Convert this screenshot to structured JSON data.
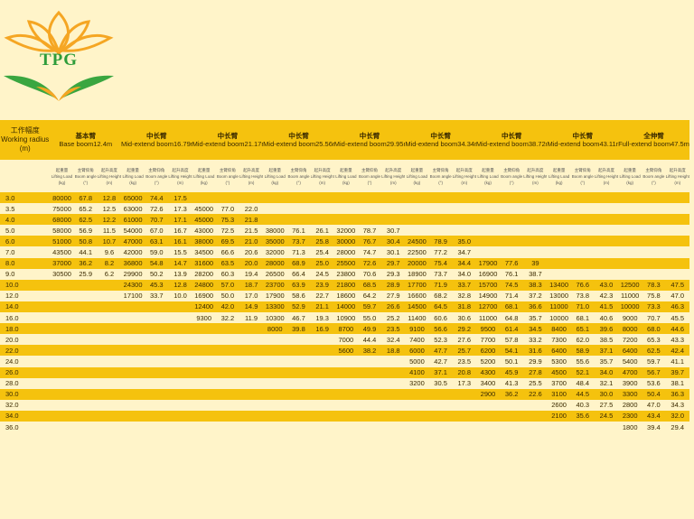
{
  "brand": {
    "text": "TPG",
    "colors": {
      "petal": "#f5a623",
      "leaf": "#3aa640",
      "text": "#2e9c3a"
    }
  },
  "colors": {
    "stripe": "#f5c20e",
    "background": "#fff4c9"
  },
  "header": {
    "working_radius": {
      "cn": "工作幅度",
      "en": "Working radius",
      "unit": "(m)"
    },
    "booms": [
      {
        "cn": "基本臂",
        "en": "Base boom",
        "len": "12.4m"
      },
      {
        "cn": "中长臂",
        "en": "Mid-extend boom",
        "len": "16.79m"
      },
      {
        "cn": "中长臂",
        "en": "Mid-extend boom",
        "len": "21.17m"
      },
      {
        "cn": "中长臂",
        "en": "Mid-extend boom",
        "len": "25.56m"
      },
      {
        "cn": "中长臂",
        "en": "Mid-extend boom",
        "len": "29.95m"
      },
      {
        "cn": "中长臂",
        "en": "Mid-extend boom",
        "len": "34.34m"
      },
      {
        "cn": "中长臂",
        "en": "Mid-extend boom",
        "len": "38.72m"
      },
      {
        "cn": "中长臂",
        "en": "Mid-extend boom",
        "len": "43.11m"
      },
      {
        "cn": "全伸臂",
        "en": "Full-extend boom",
        "len": "47.5m"
      }
    ],
    "subheads": [
      {
        "cn": "起重量",
        "en": "Lifting Load",
        "unit": "(kg)"
      },
      {
        "cn": "主臂仰角",
        "en": "Boom angle",
        "unit": "(°)"
      },
      {
        "cn": "起升高度",
        "en": "Lifting Height",
        "unit": "(m)"
      }
    ]
  },
  "rows": [
    [
      "3.0",
      "80000",
      "67.8",
      "12.8",
      "65000",
      "74.4",
      "17.5",
      "",
      "",
      "",
      "",
      "",
      "",
      "",
      "",
      "",
      "",
      "",
      "",
      "",
      "",
      "",
      "",
      "",
      "",
      "",
      "",
      ""
    ],
    [
      "3.5",
      "75000",
      "65.2",
      "12.5",
      "63000",
      "72.6",
      "17.3",
      "45000",
      "77.0",
      "22.0",
      "",
      "",
      "",
      "",
      "",
      "",
      "",
      "",
      "",
      "",
      "",
      "",
      "",
      "",
      "",
      "",
      "",
      ""
    ],
    [
      "4.0",
      "68000",
      "62.5",
      "12.2",
      "61000",
      "70.7",
      "17.1",
      "45000",
      "75.3",
      "21.8",
      "",
      "",
      "",
      "",
      "",
      "",
      "",
      "",
      "",
      "",
      "",
      "",
      "",
      "",
      "",
      "",
      "",
      ""
    ],
    [
      "5.0",
      "58000",
      "56.9",
      "11.5",
      "54000",
      "67.0",
      "16.7",
      "43000",
      "72.5",
      "21.5",
      "38000",
      "76.1",
      "26.1",
      "32000",
      "78.7",
      "30.7",
      "",
      "",
      "",
      "",
      "",
      "",
      "",
      "",
      "",
      "",
      "",
      ""
    ],
    [
      "6.0",
      "51000",
      "50.8",
      "10.7",
      "47000",
      "63.1",
      "16.1",
      "38000",
      "69.5",
      "21.0",
      "35000",
      "73.7",
      "25.8",
      "30000",
      "76.7",
      "30.4",
      "24500",
      "78.9",
      "35.0",
      "",
      "",
      "",
      "",
      "",
      "",
      "",
      "",
      ""
    ],
    [
      "7.0",
      "43500",
      "44.1",
      "9.6",
      "42000",
      "59.0",
      "15.5",
      "34500",
      "66.6",
      "20.6",
      "32000",
      "71.3",
      "25.4",
      "28000",
      "74.7",
      "30.1",
      "22500",
      "77.2",
      "34.7",
      "",
      "",
      "",
      "",
      "",
      "",
      "",
      "",
      ""
    ],
    [
      "8.0",
      "37000",
      "36.2",
      "8.2",
      "36800",
      "54.8",
      "14.7",
      "31600",
      "63.5",
      "20.0",
      "28000",
      "68.9",
      "25.0",
      "25500",
      "72.6",
      "29.7",
      "20000",
      "75.4",
      "34.4",
      "17900",
      "77.6",
      "39",
      "",
      "",
      "",
      "",
      "",
      ""
    ],
    [
      "9.0",
      "30500",
      "25.9",
      "6.2",
      "29900",
      "50.2",
      "13.9",
      "28200",
      "60.3",
      "19.4",
      "26500",
      "66.4",
      "24.5",
      "23800",
      "70.6",
      "29.3",
      "18900",
      "73.7",
      "34.0",
      "16900",
      "76.1",
      "38.7",
      "",
      "",
      "",
      "",
      "",
      ""
    ],
    [
      "10.0",
      "",
      "",
      "",
      "24300",
      "45.3",
      "12.8",
      "24800",
      "57.0",
      "18.7",
      "23700",
      "63.9",
      "23.9",
      "21800",
      "68.5",
      "28.9",
      "17700",
      "71.9",
      "33.7",
      "15700",
      "74.5",
      "38.3",
      "13400",
      "76.6",
      "43.0",
      "12500",
      "78.3",
      "47.5"
    ],
    [
      "12.0",
      "",
      "",
      "",
      "17100",
      "33.7",
      "10.0",
      "16900",
      "50.0",
      "17.0",
      "17900",
      "58.6",
      "22.7",
      "18600",
      "64.2",
      "27.9",
      "16600",
      "68.2",
      "32.8",
      "14900",
      "71.4",
      "37.2",
      "13000",
      "73.8",
      "42.3",
      "11000",
      "75.8",
      "47.0"
    ],
    [
      "14.0",
      "",
      "",
      "",
      "",
      "",
      "",
      "12400",
      "42.0",
      "14.9",
      "13300",
      "52.9",
      "21.1",
      "14000",
      "59.7",
      "26.6",
      "14500",
      "64.5",
      "31.8",
      "12700",
      "68.1",
      "36.6",
      "11000",
      "71.0",
      "41.5",
      "10000",
      "73.3",
      "46.3"
    ],
    [
      "16.0",
      "",
      "",
      "",
      "",
      "",
      "",
      "9300",
      "32.2",
      "11.9",
      "10300",
      "46.7",
      "19.3",
      "10900",
      "55.0",
      "25.2",
      "11400",
      "60.6",
      "30.6",
      "11000",
      "64.8",
      "35.7",
      "10000",
      "68.1",
      "40.6",
      "9000",
      "70.7",
      "45.5"
    ],
    [
      "18.0",
      "",
      "",
      "",
      "",
      "",
      "",
      "",
      "",
      "",
      "8000",
      "39.8",
      "16.9",
      "8700",
      "49.9",
      "23.5",
      "9100",
      "56.6",
      "29.2",
      "9500",
      "61.4",
      "34.5",
      "8400",
      "65.1",
      "39.6",
      "8000",
      "68.0",
      "44.6"
    ],
    [
      "20.0",
      "",
      "",
      "",
      "",
      "",
      "",
      "",
      "",
      "",
      "",
      "",
      "",
      "7000",
      "44.4",
      "32.4",
      "7400",
      "52.3",
      "27.6",
      "7700",
      "57.8",
      "33.2",
      "7300",
      "62.0",
      "38.5",
      "7200",
      "65.3",
      "43.3"
    ],
    [
      "22.0",
      "",
      "",
      "",
      "",
      "",
      "",
      "",
      "",
      "",
      "",
      "",
      "",
      "5600",
      "38.2",
      "18.8",
      "6000",
      "47.7",
      "25.7",
      "6200",
      "54.1",
      "31.6",
      "6400",
      "58.9",
      "37.1",
      "6400",
      "62.5",
      "42.4"
    ],
    [
      "24.0",
      "",
      "",
      "",
      "",
      "",
      "",
      "",
      "",
      "",
      "",
      "",
      "",
      "",
      "",
      "",
      "5000",
      "42.7",
      "23.5",
      "5200",
      "50.1",
      "29.9",
      "5300",
      "55.6",
      "35.7",
      "5400",
      "59.7",
      "41.1"
    ],
    [
      "26.0",
      "",
      "",
      "",
      "",
      "",
      "",
      "",
      "",
      "",
      "",
      "",
      "",
      "",
      "",
      "",
      "4100",
      "37.1",
      "20.8",
      "4300",
      "45.9",
      "27.8",
      "4500",
      "52.1",
      "34.0",
      "4700",
      "56.7",
      "39.7"
    ],
    [
      "28.0",
      "",
      "",
      "",
      "",
      "",
      "",
      "",
      "",
      "",
      "",
      "",
      "",
      "",
      "",
      "",
      "3200",
      "30.5",
      "17.3",
      "3400",
      "41.3",
      "25.5",
      "3700",
      "48.4",
      "32.1",
      "3900",
      "53.6",
      "38.1"
    ],
    [
      "30.0",
      "",
      "",
      "",
      "",
      "",
      "",
      "",
      "",
      "",
      "",
      "",
      "",
      "",
      "",
      "",
      "",
      "",
      "",
      "2900",
      "36.2",
      "22.6",
      "3100",
      "44.5",
      "30.0",
      "3300",
      "50.4",
      "36.3"
    ],
    [
      "32.0",
      "",
      "",
      "",
      "",
      "",
      "",
      "",
      "",
      "",
      "",
      "",
      "",
      "",
      "",
      "",
      "",
      "",
      "",
      "",
      "",
      "",
      "2600",
      "40.3",
      "27.5",
      "2800",
      "47.0",
      "34.3"
    ],
    [
      "34.0",
      "",
      "",
      "",
      "",
      "",
      "",
      "",
      "",
      "",
      "",
      "",
      "",
      "",
      "",
      "",
      "",
      "",
      "",
      "",
      "",
      "",
      "2100",
      "35.6",
      "24.5",
      "2300",
      "43.4",
      "32.0"
    ],
    [
      "36.0",
      "",
      "",
      "",
      "",
      "",
      "",
      "",
      "",
      "",
      "",
      "",
      "",
      "",
      "",
      "",
      "",
      "",
      "",
      "",
      "",
      "",
      "",
      "",
      "",
      "1800",
      "39.4",
      "29.4"
    ]
  ]
}
